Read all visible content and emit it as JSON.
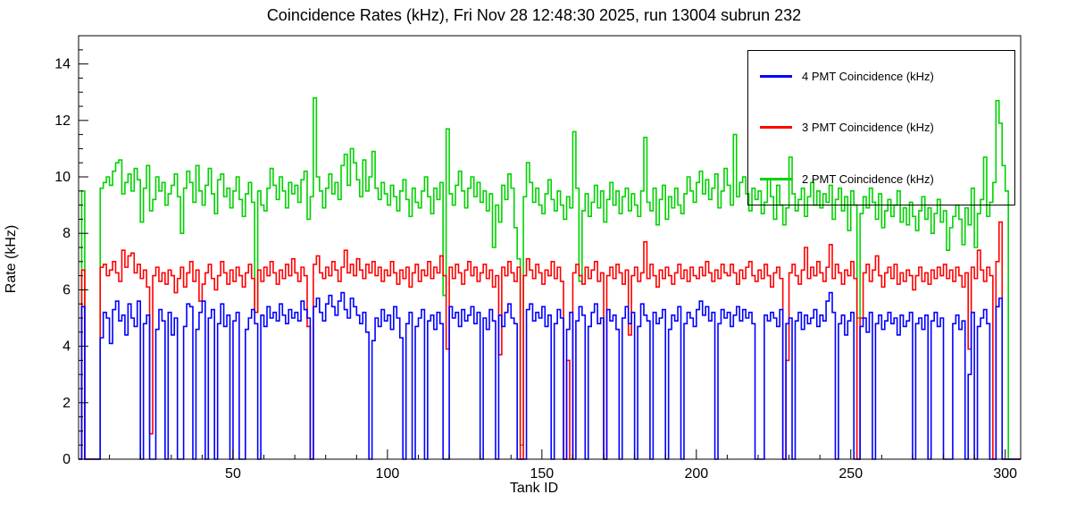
{
  "chart_data": {
    "type": "line",
    "style": "step-histogram",
    "title": "Coincidence Rates (kHz), Fri Nov 28 12:48:30 2025, run 13004 subrun 232",
    "xlabel": "Tank ID",
    "ylabel": "Rate (kHz)",
    "xlim": [
      0,
      305
    ],
    "ylim": [
      0,
      15
    ],
    "xticks_major": [
      50,
      100,
      150,
      200,
      250,
      300
    ],
    "yticks_major": [
      0,
      2,
      4,
      6,
      8,
      10,
      12,
      14
    ],
    "x_minor_step": 10,
    "y_minor_step": 0.5,
    "grid": false,
    "legend_position": "top-right",
    "series": [
      {
        "name": "4 PMT Coincidence (kHz)",
        "color": "#0000ff",
        "values": [
          0,
          5.4,
          0,
          0,
          0,
          0,
          0,
          4.3,
          5.2,
          5.0,
          4.1,
          5.3,
          5.6,
          4.9,
          5.1,
          4.4,
          5.5,
          5.0,
          4.7,
          5.6,
          0,
          4.8,
          5.1,
          0,
          0,
          4.6,
          5.3,
          4.9,
          0,
          5.2,
          4.4,
          5.0,
          0,
          0,
          4.7,
          5.5,
          5.4,
          0,
          4.6,
          5.2,
          5.6,
          0,
          5.0,
          5.3,
          0,
          4.8,
          5.5,
          4.7,
          5.1,
          0,
          4.9,
          5.2,
          0,
          0,
          4.6,
          5.0,
          5.3,
          4.8,
          0,
          5.1,
          4.7,
          5.4,
          5.0,
          5.2,
          4.9,
          5.5,
          5.1,
          4.8,
          5.3,
          5.0,
          5.2,
          4.9,
          5.6,
          5.3,
          5.0,
          0,
          5.4,
          5.7,
          5.2,
          4.9,
          5.5,
          5.8,
          5.4,
          5.1,
          5.6,
          5.9,
          5.3,
          5.0,
          5.7,
          5.4,
          5.1,
          4.8,
          5.2,
          4.5,
          0,
          4.2,
          5.0,
          4.7,
          5.3,
          4.9,
          5.1,
          4.6,
          5.4,
          5.0,
          4.3,
          0,
          4.8,
          5.2,
          0,
          4.7,
          5.0,
          5.3,
          0,
          4.9,
          5.1,
          4.6,
          5.2,
          4.8,
          0,
          0,
          5.4,
          5.0,
          5.2,
          4.7,
          5.3,
          4.9,
          5.1,
          5.4,
          4.8,
          5.2,
          0,
          5.0,
          4.6,
          5.3,
          4.9,
          0,
          5.1,
          4.7,
          5.2,
          5.5,
          5.0,
          4.8,
          0,
          0,
          0,
          5.3,
          5.5,
          4.9,
          5.2,
          5.0,
          5.4,
          4.7,
          5.1,
          0,
          4.8,
          5.3,
          5.0,
          0,
          4.6,
          5.2,
          0,
          4.9,
          5.4,
          5.1,
          0,
          4.7,
          5.2,
          5.5,
          4.8,
          5.0,
          0,
          5.3,
          4.9,
          5.1,
          4.6,
          0,
          5.0,
          5.4,
          4.8,
          5.2,
          0,
          4.7,
          5.5,
          5.1,
          4.9,
          0,
          5.2,
          4.8,
          5.0,
          5.3,
          0,
          4.6,
          5.1,
          4.9,
          5.4,
          0,
          4.8,
          5.2,
          5.0,
          4.7,
          5.3,
          5.6,
          5.1,
          5.4,
          4.9,
          5.2,
          0,
          4.8,
          5.3,
          5.0,
          5.2,
          4.7,
          5.1,
          5.4,
          4.9,
          5.3,
          5.0,
          5.2,
          4.8,
          0,
          0,
          0,
          5.1,
          4.9,
          5.2,
          5.0,
          4.7,
          5.3,
          0,
          4.8,
          5.0,
          0,
          4.9,
          5.2,
          4.6,
          5.1,
          4.8,
          5.0,
          5.3,
          4.7,
          5.1,
          4.9,
          5.6,
          5.9,
          5.2,
          0,
          4.8,
          5.1,
          4.4,
          4.9,
          5.2,
          0,
          0,
          4.7,
          5.0,
          4.5,
          5.2,
          0,
          4.8,
          5.1,
          4.6,
          4.9,
          5.2,
          4.8,
          5.0,
          4.4,
          5.1,
          4.7,
          4.9,
          5.2,
          0,
          4.8,
          5.0,
          4.6,
          5.1,
          0,
          4.9,
          5.2,
          4.7,
          5.0,
          0,
          0,
          0,
          4.8,
          5.1,
          4.6,
          4.9,
          0,
          3.0,
          5.2,
          0,
          4.7,
          5.0,
          5.3,
          4.8,
          0,
          0,
          5.4,
          5.7,
          0,
          0,
          0,
          0,
          0,
          0
        ]
      },
      {
        "name": "3 PMT Coincidence (kHz)",
        "color": "#ff0000",
        "values": [
          0,
          6.7,
          0,
          0,
          0,
          0,
          0,
          6.8,
          6.9,
          6.5,
          6.7,
          7.0,
          6.6,
          6.3,
          7.4,
          6.8,
          7.2,
          7.3,
          6.6,
          6.9,
          6.4,
          6.7,
          6.1,
          0.9,
          6.5,
          6.8,
          6.3,
          6.6,
          6.2,
          6.7,
          6.5,
          5.9,
          6.4,
          6.8,
          6.1,
          6.6,
          7.0,
          6.3,
          6.7,
          5.6,
          6.2,
          6.6,
          6.9,
          6.4,
          6.0,
          6.5,
          7.0,
          6.6,
          6.2,
          6.7,
          6.3,
          6.8,
          6.5,
          6.1,
          6.6,
          6.9,
          6.4,
          5.2,
          6.7,
          6.3,
          6.8,
          6.5,
          7.0,
          6.6,
          6.2,
          6.7,
          6.4,
          6.9,
          6.5,
          7.1,
          6.6,
          6.3,
          6.8,
          6.5,
          4.7,
          0,
          6.9,
          7.2,
          6.6,
          6.4,
          6.8,
          6.5,
          7.0,
          6.7,
          6.3,
          6.8,
          7.4,
          6.6,
          6.9,
          6.5,
          7.1,
          6.7,
          6.4,
          6.9,
          6.6,
          7.0,
          6.5,
          6.8,
          6.3,
          6.7,
          6.5,
          7.0,
          6.6,
          6.2,
          6.7,
          6.4,
          6.8,
          6.1,
          6.6,
          6.9,
          6.3,
          6.7,
          6.5,
          7.0,
          6.4,
          6.8,
          6.6,
          7.2,
          6.5,
          3.9,
          6.8,
          6.4,
          6.9,
          6.6,
          6.2,
          6.7,
          7.0,
          6.5,
          6.8,
          6.3,
          6.6,
          6.9,
          6.4,
          6.7,
          6.1,
          6.5,
          3.7,
          6.8,
          6.5,
          7.0,
          6.6,
          6.3,
          6.8,
          0,
          6.5,
          7.1,
          6.7,
          6.4,
          6.9,
          6.6,
          6.2,
          6.7,
          6.5,
          7.0,
          6.4,
          6.8,
          6.3,
          0,
          3.5,
          0,
          6.6,
          6.9,
          6.5,
          6.2,
          6.8,
          6.4,
          6.7,
          7.0,
          6.3,
          6.6,
          0,
          6.5,
          6.8,
          6.4,
          6.9,
          6.6,
          6.2,
          6.7,
          4.4,
          6.5,
          6.8,
          6.3,
          6.6,
          7.7,
          6.4,
          6.9,
          6.5,
          6.1,
          6.7,
          6.4,
          6.8,
          6.5,
          6.2,
          6.6,
          6.9,
          6.4,
          6.7,
          6.3,
          6.8,
          6.5,
          6.4,
          6.8,
          6.5,
          7.0,
          6.6,
          6.3,
          6.7,
          6.4,
          6.9,
          6.6,
          6.5,
          6.9,
          6.6,
          6.2,
          6.7,
          6.4,
          6.8,
          7.0,
          6.5,
          6.3,
          6.7,
          6.4,
          6.9,
          6.5,
          6.1,
          6.6,
          6.8,
          6.4,
          0,
          3.5,
          6.6,
          6.9,
          6.5,
          6.2,
          6.7,
          7.5,
          6.4,
          6.8,
          6.5,
          7.0,
          6.6,
          6.3,
          6.8,
          7.6,
          6.4,
          6.9,
          6.6,
          6.2,
          6.7,
          6.5,
          7.0,
          6.4,
          0,
          5.0,
          6.6,
          6.9,
          6.3,
          6.7,
          7.2,
          6.5,
          6.1,
          6.6,
          6.8,
          6.4,
          6.9,
          6.2,
          6.6,
          6.3,
          6.7,
          6.5,
          6.0,
          6.5,
          6.8,
          6.3,
          6.6,
          6.2,
          6.7,
          6.4,
          6.8,
          6.5,
          6.9,
          6.4,
          6.7,
          6.3,
          6.8,
          6.5,
          6.1,
          6.6,
          3.9,
          6.8,
          6.4,
          7.4,
          6.7,
          6.3,
          6.8,
          6.5,
          0,
          7.0,
          8.4,
          0,
          0,
          0,
          0,
          0,
          0
        ]
      },
      {
        "name": "2 PMT Coincidence (kHz)",
        "color": "#00d300",
        "values": [
          0,
          9.5,
          0,
          0,
          0,
          0,
          0,
          9.6,
          9.8,
          10.0,
          9.7,
          10.2,
          10.5,
          10.6,
          9.4,
          9.8,
          10.1,
          9.5,
          10.3,
          9.9,
          8.4,
          9.6,
          10.4,
          8.8,
          9.2,
          10.0,
          9.5,
          9.8,
          9.0,
          9.4,
          9.7,
          10.1,
          9.3,
          8.0,
          9.6,
          10.2,
          9.8,
          9.1,
          10.4,
          9.5,
          9.0,
          9.7,
          10.3,
          9.4,
          8.7,
          9.9,
          10.1,
          9.3,
          9.6,
          8.9,
          9.5,
          10.0,
          9.2,
          8.6,
          9.4,
          9.8,
          9.1,
          5.2,
          9.5,
          9.0,
          8.8,
          9.6,
          10.3,
          9.7,
          9.2,
          10.0,
          9.5,
          8.9,
          9.8,
          9.4,
          9.7,
          9.1,
          9.9,
          10.2,
          8.5,
          9.3,
          12.8,
          10.0,
          9.5,
          8.9,
          9.6,
          10.1,
          9.4,
          9.8,
          9.2,
          10.4,
          10.8,
          9.7,
          11.0,
          10.5,
          9.9,
          9.3,
          10.6,
          9.5,
          10.0,
          10.9,
          9.6,
          9.2,
          9.8,
          9.4,
          9.0,
          9.7,
          9.3,
          8.8,
          9.5,
          9.9,
          9.2,
          8.6,
          9.6,
          9.1,
          8.9,
          9.5,
          10.0,
          9.3,
          8.7,
          9.6,
          9.2,
          9.8,
          5.8,
          11.7,
          9.4,
          9.0,
          9.7,
          10.2,
          9.5,
          8.9,
          9.6,
          10.0,
          9.3,
          9.8,
          9.1,
          9.5,
          8.8,
          9.4,
          7.5,
          9.0,
          8.4,
          9.7,
          9.2,
          10.1,
          9.6,
          8.2,
          7.1,
          0.5,
          9.3,
          10.5,
          9.8,
          9.1,
          9.6,
          9.0,
          8.7,
          9.4,
          9.9,
          9.2,
          8.8,
          9.5,
          9.0,
          8.5,
          9.3,
          8.9,
          11.6,
          9.6,
          6.3,
          8.8,
          9.4,
          8.6,
          9.1,
          9.7,
          8.9,
          9.5,
          8.4,
          9.2,
          9.8,
          9.0,
          9.5,
          8.7,
          9.3,
          9.6,
          8.8,
          9.4,
          9.0,
          8.6,
          9.5,
          11.4,
          9.1,
          8.8,
          9.6,
          8.3,
          9.2,
          9.7,
          8.5,
          9.3,
          8.9,
          9.6,
          9.0,
          8.7,
          9.4,
          10.0,
          9.5,
          9.1,
          9.8,
          10.2,
          9.4,
          9.9,
          9.2,
          9.6,
          10.1,
          8.9,
          9.5,
          10.3,
          9.7,
          9.0,
          11.5,
          9.3,
          9.8,
          10.0,
          9.4,
          8.8,
          9.6,
          9.2,
          9.5,
          8.7,
          9.1,
          9.9,
          9.3,
          8.5,
          9.7,
          9.0,
          8.3,
          8.9,
          10.7,
          9.4,
          8.8,
          9.2,
          9.6,
          8.6,
          9.3,
          9.8,
          9.0,
          9.5,
          8.9,
          9.4,
          9.1,
          9.7,
          8.5,
          9.2,
          9.6,
          8.8,
          9.3,
          8.1,
          9.5,
          9.0,
          5.0,
          8.7,
          9.3,
          8.9,
          9.6,
          9.1,
          8.5,
          9.4,
          8.2,
          8.8,
          9.2,
          8.6,
          9.0,
          9.5,
          8.4,
          8.9,
          8.3,
          9.1,
          8.6,
          8.1,
          8.8,
          9.3,
          8.5,
          8.9,
          8.0,
          8.7,
          9.2,
          8.4,
          8.8,
          7.4,
          8.2,
          8.6,
          9.0,
          8.5,
          7.6,
          8.9,
          8.3,
          9.6,
          7.5,
          8.7,
          9.2,
          10.7,
          8.6,
          9.1,
          9.8,
          12.7,
          11.9,
          10.4,
          9.5,
          0,
          0,
          0,
          0
        ]
      }
    ]
  }
}
